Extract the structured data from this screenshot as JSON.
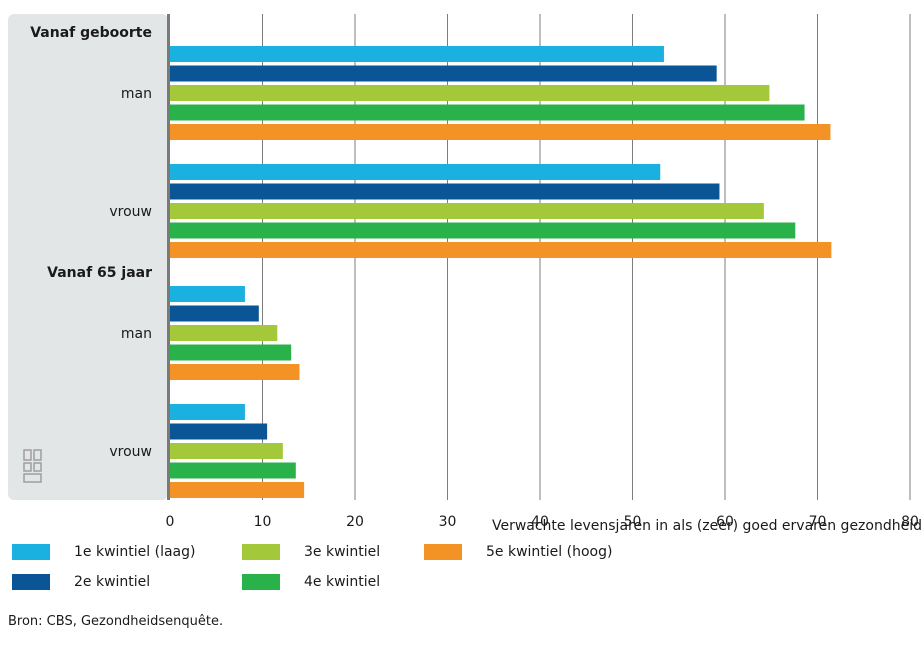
{
  "chart_data": {
    "type": "bar",
    "orientation": "horizontal",
    "xlabel": "Verwachte levensjaren in als (zeer) goed ervaren gezondheid",
    "xlim": [
      0,
      80
    ],
    "xticks": [
      0,
      10,
      20,
      30,
      40,
      50,
      60,
      70,
      80
    ],
    "grid": true,
    "groups": [
      {
        "section": "Vanaf geboorte",
        "categories": [
          {
            "label": "man",
            "values": [
              53.4,
              59.1,
              64.8,
              68.6,
              71.4
            ]
          },
          {
            "label": "vrouw",
            "values": [
              53.0,
              59.4,
              64.2,
              67.6,
              71.5
            ]
          }
        ]
      },
      {
        "section": "Vanaf 65 jaar",
        "categories": [
          {
            "label": "man",
            "values": [
              8.1,
              9.6,
              11.6,
              13.1,
              14.0
            ]
          },
          {
            "label": "vrouw",
            "values": [
              8.1,
              10.5,
              12.2,
              13.6,
              14.5
            ]
          }
        ]
      }
    ],
    "series": [
      {
        "name": "1e kwintiel (laag)",
        "color": "#1ab0e0"
      },
      {
        "name": "2e kwintiel",
        "color": "#0a5596"
      },
      {
        "name": "3e kwintiel",
        "color": "#a3c93a"
      },
      {
        "name": "4e kwintiel",
        "color": "#2ab24a"
      },
      {
        "name": "5e kwintiel (hoog)",
        "color": "#f39325"
      }
    ],
    "legend_position": "bottom"
  },
  "source": "Bron: CBS, Gezondheidsenquête.",
  "logo_icon": "cbs-logo-icon"
}
